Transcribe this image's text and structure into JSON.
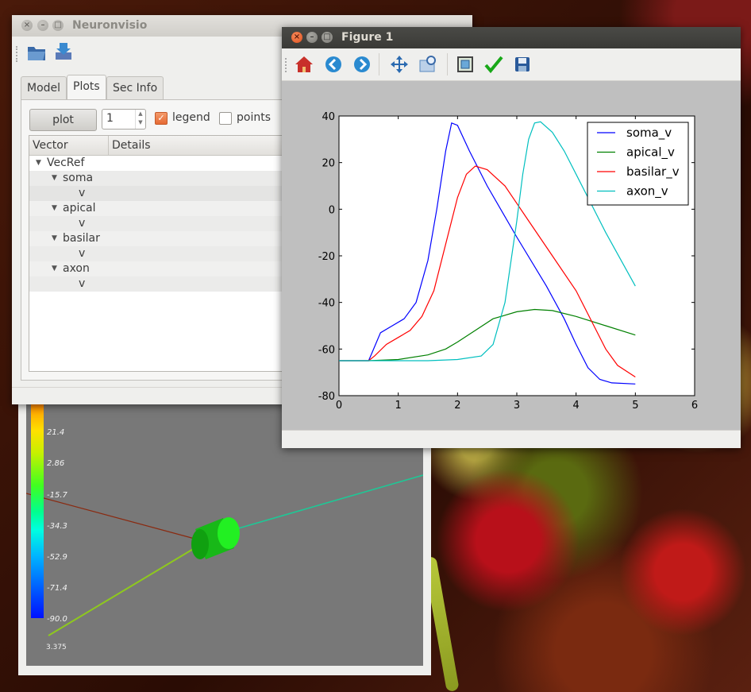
{
  "neuronvisio": {
    "title": "Neuronvisio",
    "toolbar": {
      "open_icon": "folder-open-icon",
      "save_icon": "save-icon"
    },
    "tabs": [
      {
        "label": "Model",
        "active": false
      },
      {
        "label": "Plots",
        "active": true
      },
      {
        "label": "Sec Info",
        "active": false
      }
    ],
    "plot_button": "plot",
    "spin_value": "1",
    "legend_label": "legend",
    "legend_checked": true,
    "points_label": "points",
    "points_checked": false,
    "tree_columns": [
      "Vector",
      "Details"
    ],
    "tree": [
      {
        "label": "VecRef",
        "level": 0,
        "expanded": true
      },
      {
        "label": "soma",
        "level": 1,
        "expanded": true
      },
      {
        "label": "v",
        "level": 2
      },
      {
        "label": "apical",
        "level": 1,
        "expanded": true
      },
      {
        "label": "v",
        "level": 2
      },
      {
        "label": "basilar",
        "level": 1,
        "expanded": true
      },
      {
        "label": "v",
        "level": 2
      },
      {
        "label": "axon",
        "level": 1,
        "expanded": true
      },
      {
        "label": "v",
        "level": 2
      }
    ]
  },
  "viewer3d": {
    "colorbar_labels": [
      "21.4",
      "2.86",
      "-15.7",
      "-34.3",
      "-52.9",
      "-71.4",
      "-90.0"
    ],
    "scale_label": "3.375"
  },
  "figure": {
    "title": "Figure 1",
    "toolbar_icons": [
      "home-icon",
      "back-icon",
      "forward-icon",
      "pan-icon",
      "zoom-icon",
      "subplots-icon",
      "edit-icon",
      "save-icon"
    ]
  },
  "chart_data": {
    "type": "line",
    "title": "",
    "xlabel": "",
    "ylabel": "",
    "xlim": [
      0,
      6
    ],
    "ylim": [
      -80,
      40
    ],
    "xticks": [
      0,
      1,
      2,
      3,
      4,
      5,
      6
    ],
    "yticks": [
      40,
      20,
      0,
      -20,
      -40,
      -60,
      -80
    ],
    "grid": false,
    "legend_position": "top-right",
    "series": [
      {
        "name": "soma_v",
        "color": "#0000ff",
        "x": [
          0,
          0.5,
          0.55,
          0.7,
          0.9,
          1.1,
          1.3,
          1.5,
          1.65,
          1.8,
          1.9,
          2.0,
          2.2,
          2.5,
          3.0,
          3.5,
          3.8,
          4.0,
          4.2,
          4.4,
          4.6,
          5.0
        ],
        "y": [
          -65,
          -65,
          -62,
          -53,
          -50,
          -47,
          -40,
          -22,
          0,
          25,
          37,
          36,
          25,
          10,
          -12,
          -33,
          -47,
          -58,
          -68,
          -73,
          -74.5,
          -75
        ]
      },
      {
        "name": "apical_v",
        "color": "#008000",
        "x": [
          0,
          0.5,
          1.0,
          1.5,
          1.8,
          2.0,
          2.3,
          2.6,
          3.0,
          3.3,
          3.6,
          4.0,
          4.5,
          5.0
        ],
        "y": [
          -65,
          -65,
          -64.5,
          -62.5,
          -60,
          -57,
          -52,
          -47,
          -44,
          -43,
          -43.5,
          -46,
          -50,
          -54
        ]
      },
      {
        "name": "basilar_v",
        "color": "#ff0000",
        "x": [
          0,
          0.5,
          0.6,
          0.8,
          1.0,
          1.2,
          1.4,
          1.6,
          1.8,
          2.0,
          2.15,
          2.3,
          2.5,
          2.8,
          3.2,
          3.6,
          4.0,
          4.3,
          4.5,
          4.7,
          5.0
        ],
        "y": [
          -65,
          -65,
          -63,
          -58,
          -55,
          -52,
          -46,
          -35,
          -15,
          5,
          15,
          18.5,
          17,
          10,
          -5,
          -20,
          -35,
          -50,
          -60,
          -67,
          -72
        ]
      },
      {
        "name": "axon_v",
        "color": "#00bfbf",
        "x": [
          0,
          0.5,
          1.0,
          1.5,
          2.0,
          2.4,
          2.6,
          2.8,
          3.0,
          3.1,
          3.2,
          3.3,
          3.4,
          3.6,
          3.8,
          4.0,
          4.5,
          5.0
        ],
        "y": [
          -65,
          -65,
          -65,
          -65,
          -64.5,
          -63,
          -58,
          -40,
          -5,
          15,
          30,
          37,
          37.5,
          33,
          25,
          15,
          -10,
          -33
        ]
      }
    ]
  }
}
